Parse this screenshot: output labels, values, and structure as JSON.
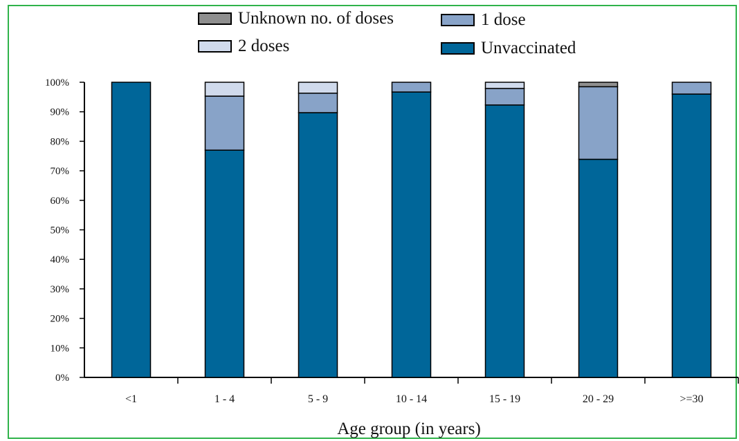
{
  "chart_data": {
    "type": "bar",
    "stacked": true,
    "categories": [
      "<1",
      "1 - 4",
      "5 - 9",
      "10 - 14",
      "15 - 19",
      "20 - 29",
      ">=30"
    ],
    "series": [
      {
        "name": "Unvaccinated",
        "color": "#006699",
        "values": [
          100,
          77,
          89.7,
          96.7,
          92.3,
          73.9,
          96
        ]
      },
      {
        "name": "1 dose",
        "color": "#88a3c8",
        "values": [
          0,
          18.3,
          6.6,
          3.3,
          5.6,
          24.6,
          4
        ]
      },
      {
        "name": "2 doses",
        "color": "#d0daec",
        "values": [
          0,
          4.7,
          3.7,
          0,
          2.1,
          0,
          0
        ]
      },
      {
        "name": "Unknown no. of doses",
        "color": "#8f8f8f",
        "values": [
          0,
          0,
          0,
          0,
          0,
          1.5,
          0
        ]
      }
    ],
    "legend": [
      {
        "label": "Unknown no. of doses",
        "color": "#8f8f8f"
      },
      {
        "label": "1 dose",
        "color": "#88a3c8"
      },
      {
        "label": "2 doses",
        "color": "#d0daec"
      },
      {
        "label": "Unvaccinated",
        "color": "#006699"
      }
    ],
    "y_ticks": [
      "0%",
      "10%",
      "20%",
      "30%",
      "40%",
      "50%",
      "60%",
      "70%",
      "80%",
      "90%",
      "100%"
    ],
    "ylim": [
      0,
      100
    ],
    "xlabel": "Age group (in years)",
    "ylabel": "",
    "grid": false,
    "legend_position": "top"
  }
}
